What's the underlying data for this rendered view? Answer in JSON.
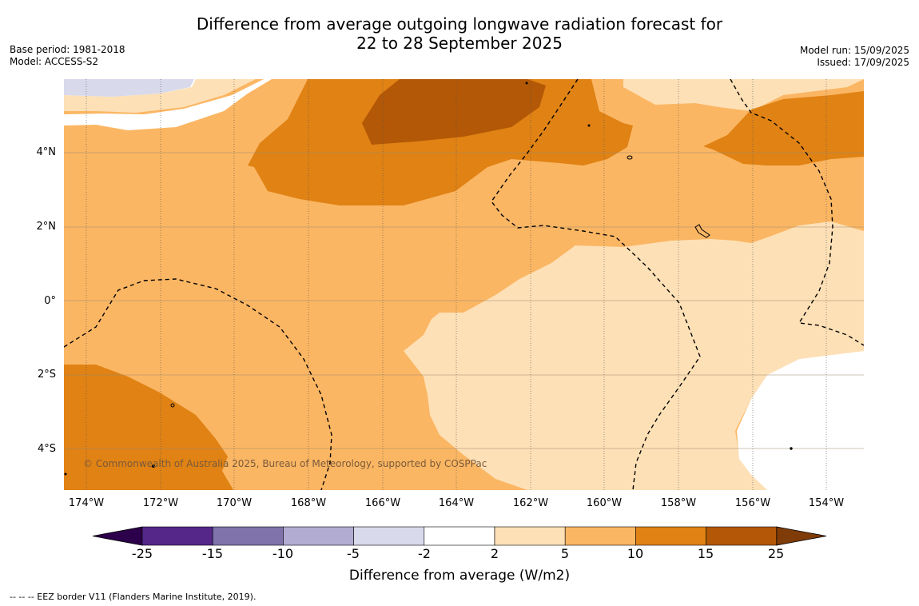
{
  "header": {
    "title_line1": "Difference from average outgoing longwave radiation forecast for",
    "title_line2": "22 to 28 September 2025",
    "base_period": "Base period: 1981-2018",
    "model": "Model: ACCESS-S2",
    "model_run": "Model run: 15/09/2025",
    "issued": "Issued: 17/09/2025"
  },
  "map": {
    "copyright": "© Commonwealth of Australia 2025, Bureau of Meteorology, supported by COSPPac",
    "lat_labels": [
      "4°N",
      "2°N",
      "0°",
      "2°S",
      "4°S"
    ],
    "lon_labels": [
      "174°W",
      "172°W",
      "170°W",
      "168°W",
      "166°W",
      "164°W",
      "162°W",
      "160°W",
      "158°W",
      "156°W",
      "154°W"
    ]
  },
  "colorbar": {
    "title": "Difference from average (W/m2)",
    "tick_labels": [
      "-25",
      "-15",
      "-10",
      "-5",
      "-2",
      "2",
      "5",
      "10",
      "15",
      "25"
    ],
    "colors": [
      "#2d004b",
      "#542788",
      "#8073ac",
      "#b2abd2",
      "#d8daeb",
      "#ffffff",
      "#fee0b6",
      "#fbb663",
      "#e08214",
      "#b35806",
      "#7f3b08"
    ]
  },
  "footnote": "--  --  -- EEZ border V11 (Flanders Marine Institute, 2019)."
}
